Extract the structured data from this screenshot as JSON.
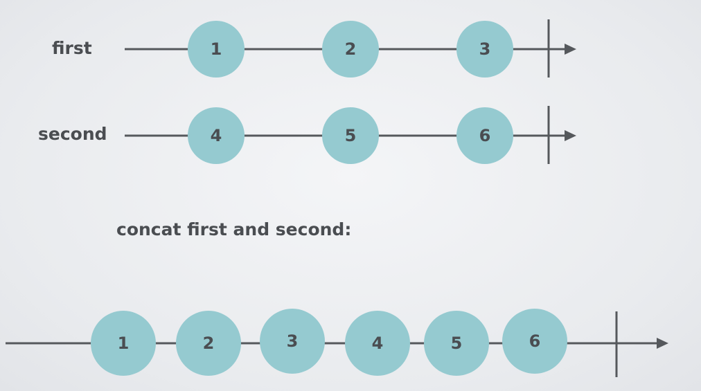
{
  "colors": {
    "marble": "#95cad0",
    "line": "#55585c",
    "text": "#4a4d51"
  },
  "timelines": [
    {
      "id": "first",
      "label": "first",
      "marbles": [
        "1",
        "2",
        "3"
      ]
    },
    {
      "id": "second",
      "label": "second",
      "marbles": [
        "4",
        "5",
        "6"
      ]
    },
    {
      "id": "result",
      "label": "",
      "marbles": [
        "1",
        "2",
        "3",
        "4",
        "5",
        "6"
      ]
    }
  ],
  "caption": "concat first and second:"
}
